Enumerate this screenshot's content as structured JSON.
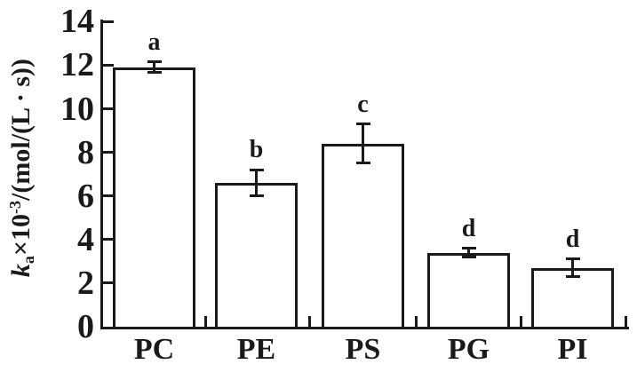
{
  "figure": {
    "background": "#ffffff",
    "ink_color": "#1a1a1a"
  },
  "y_axis": {
    "label_parts": {
      "k": "k",
      "sub": "a",
      "times": "×10",
      "sup": "-3",
      "unit": "/(mol/(L · s))"
    },
    "tick_labels": [
      "0",
      "2",
      "4",
      "6",
      "8",
      "10",
      "12",
      "14"
    ]
  },
  "chart_data": {
    "type": "bar",
    "categories": [
      "PC",
      "PE",
      "PS",
      "PG",
      "PI"
    ],
    "values": [
      11.9,
      6.6,
      8.4,
      3.4,
      2.7
    ],
    "error_bars": [
      0.25,
      0.6,
      0.9,
      0.2,
      0.4
    ],
    "significance_letters": [
      "a",
      "b",
      "c",
      "d",
      "d"
    ],
    "title": "",
    "xlabel": "",
    "ylabel": "ka×10^-3/(mol/(L · s))",
    "ylim": [
      0,
      14
    ],
    "ytick_interval": 2,
    "grid": false,
    "legend": "none",
    "bar_fill": "#ffffff",
    "bar_outline": "#1a1a1a"
  }
}
